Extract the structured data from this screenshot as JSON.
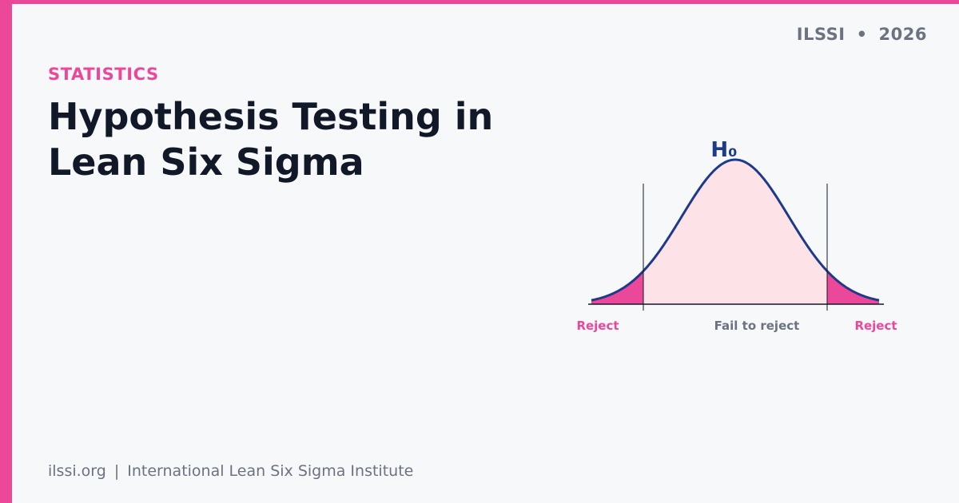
{
  "header": {
    "org": "ILSSI",
    "separator": "•",
    "year": "2026"
  },
  "category": "STATISTICS",
  "title": {
    "line1": "Hypothesis Testing in",
    "line2": "Lean Six Sigma"
  },
  "diagram": {
    "hypothesis_label": "H₀",
    "left_region_label": "Reject",
    "center_region_label": "Fail to reject",
    "right_region_label": "Reject"
  },
  "footer": {
    "site": "ilssi.org",
    "divider": "|",
    "organization": "International Lean Six Sigma Institute"
  },
  "colors": {
    "accent": "#ec4899",
    "curve": "#1e3a8a",
    "acceptance_fill": "#fde2e7",
    "text_dark": "#111827",
    "text_muted": "#6b7280"
  }
}
